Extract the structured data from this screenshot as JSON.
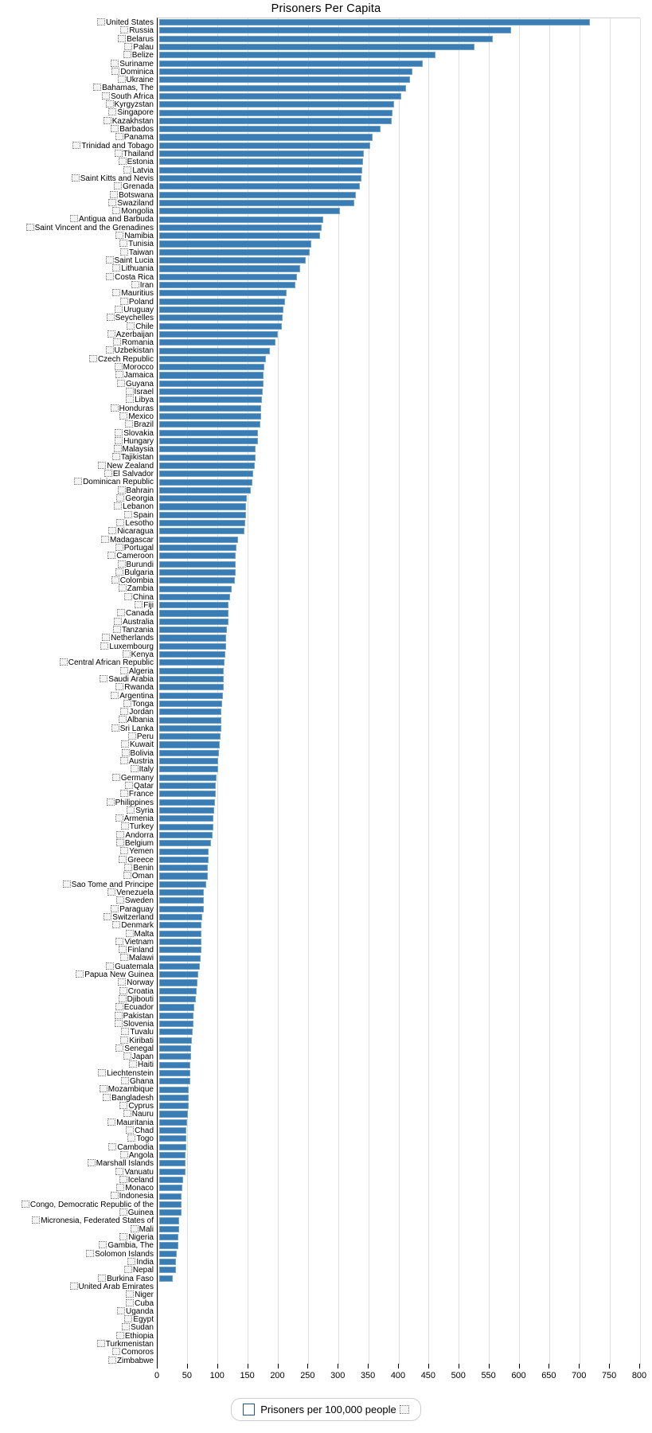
{
  "chart": {
    "title": "Prisoners Per Capita"
  },
  "legend": {
    "label": "Prisoners per 100,000 people"
  },
  "x_axis": {
    "tick_labels": [
      "0",
      "50",
      "100",
      "150",
      "200",
      "250",
      "300",
      "350",
      "400",
      "450",
      "500",
      "550",
      "600",
      "650",
      "700",
      "750",
      "800"
    ]
  },
  "colors": {
    "bar": "#3a7db5",
    "gridline": "#dedede",
    "axis": "#000000"
  },
  "chart_data": {
    "type": "bar",
    "orientation": "horizontal",
    "title": "Prisoners Per Capita",
    "xlabel": "",
    "ylabel": "",
    "xlim": [
      0,
      800
    ],
    "x_ticks": [
      0,
      50,
      100,
      150,
      200,
      250,
      300,
      350,
      400,
      450,
      500,
      550,
      600,
      650,
      700,
      750,
      800
    ],
    "grid": true,
    "legend_position": "bottom-center",
    "series_name": "Prisoners per 100,000 people",
    "categories": [
      "United States",
      "Russia",
      "Belarus",
      "Palau",
      "Belize",
      "Suriname",
      "Dominica",
      "Ukraine",
      "Bahamas, The",
      "South Africa",
      "Kyrgyzstan",
      "Singapore",
      "Kazakhstan",
      "Barbados",
      "Panama",
      "Trinidad and Tobago",
      "Thailand",
      "Estonia",
      "Latvia",
      "Saint Kitts and Nevis",
      "Grenada",
      "Botswana",
      "Swaziland",
      "Mongolia",
      "Antigua and Barbuda",
      "Saint Vincent and the Grenadines",
      "Namibia",
      "Tunisia",
      "Taiwan",
      "Saint Lucia",
      "Lithuania",
      "Costa Rica",
      "Iran",
      "Mauritius",
      "Poland",
      "Uruguay",
      "Seychelles",
      "Chile",
      "Azerbaijan",
      "Romania",
      "Uzbekistan",
      "Czech Republic",
      "Morocco",
      "Jamaica",
      "Guyana",
      "Israel",
      "Libya",
      "Honduras",
      "Mexico",
      "Brazil",
      "Slovakia",
      "Hungary",
      "Malaysia",
      "Tajikistan",
      "New Zealand",
      "El Salvador",
      "Dominican Republic",
      "Bahrain",
      "Georgia",
      "Lebanon",
      "Spain",
      "Lesotho",
      "Nicaragua",
      "Madagascar",
      "Portugal",
      "Cameroon",
      "Burundi",
      "Bulgaria",
      "Colombia",
      "Zambia",
      "China",
      "Fiji",
      "Canada",
      "Australia",
      "Tanzania",
      "Netherlands",
      "Luxembourg",
      "Kenya",
      "Central African Republic",
      "Algeria",
      "Saudi Arabia",
      "Rwanda",
      "Argentina",
      "Tonga",
      "Jordan",
      "Albania",
      "Sri Lanka",
      "Peru",
      "Kuwait",
      "Bolivia",
      "Austria",
      "Italy",
      "Germany",
      "Qatar",
      "France",
      "Philippines",
      "Syria",
      "Armenia",
      "Turkey",
      "Andorra",
      "Belgium",
      "Yemen",
      "Greece",
      "Benin",
      "Oman",
      "Sao Tome and Principe",
      "Venezuela",
      "Sweden",
      "Paraguay",
      "Switzerland",
      "Denmark",
      "Malta",
      "Vietnam",
      "Finland",
      "Malawi",
      "Guatemala",
      "Papua New Guinea",
      "Norway",
      "Croatia",
      "Djibouti",
      "Ecuador",
      "Pakistan",
      "Slovenia",
      "Tuvalu",
      "Kiribati",
      "Senegal",
      "Japan",
      "Haiti",
      "Liechtenstein",
      "Ghana",
      "Mozambique",
      "Bangladesh",
      "Cyprus",
      "Nauru",
      "Mauritania",
      "Chad",
      "Togo",
      "Cambodia",
      "Angola",
      "Marshall Islands",
      "Vanuatu",
      "Iceland",
      "Monaco",
      "Indonesia",
      "Congo, Democratic Republic of the",
      "Guinea",
      "Micronesia, Federated States of",
      "Mali",
      "Nigeria",
      "Gambia, The",
      "Solomon Islands",
      "India",
      "Nepal",
      "Burkina Faso",
      "United Arab Emirates",
      "Niger",
      "Cuba",
      "Uganda",
      "Egypt",
      "Sudan",
      "Ethiopia",
      "Turkmenistan",
      "Comoros",
      "Zimbabwe"
    ],
    "values": [
      715,
      584,
      554,
      523,
      459,
      437,
      420,
      416,
      410,
      402,
      390,
      388,
      386,
      367,
      354,
      351,
      340,
      339,
      337,
      336,
      333,
      327,
      324,
      300,
      272,
      270,
      267,
      253,
      250,
      243,
      234,
      229,
      226,
      212,
      209,
      207,
      205,
      204,
      198,
      193,
      184,
      178,
      175,
      174,
      173,
      172,
      171,
      170,
      169,
      168,
      165,
      164,
      161,
      160,
      159,
      157,
      155,
      153,
      146,
      145,
      144,
      143,
      142,
      131,
      129,
      128,
      128,
      127,
      126,
      121,
      118,
      116,
      116,
      115,
      113,
      112,
      111,
      110,
      109,
      108,
      108,
      107,
      106,
      105,
      104,
      104,
      103,
      102,
      101,
      100,
      99,
      98,
      96,
      95,
      94,
      93,
      92,
      91,
      91,
      89,
      87,
      83,
      82,
      81,
      81,
      78,
      75,
      75,
      74,
      72,
      71,
      71,
      70,
      70,
      69,
      68,
      65,
      64,
      63,
      61,
      59,
      58,
      58,
      56,
      55,
      54,
      54,
      52,
      52,
      52,
      50,
      50,
      49,
      48,
      47,
      46,
      46,
      45,
      44,
      44,
      44,
      40,
      39,
      38,
      38,
      37,
      34,
      34,
      33,
      32,
      30,
      29,
      29,
      23,
      0,
      0,
      0,
      0,
      0,
      0,
      0,
      0,
      0,
      0
    ]
  }
}
